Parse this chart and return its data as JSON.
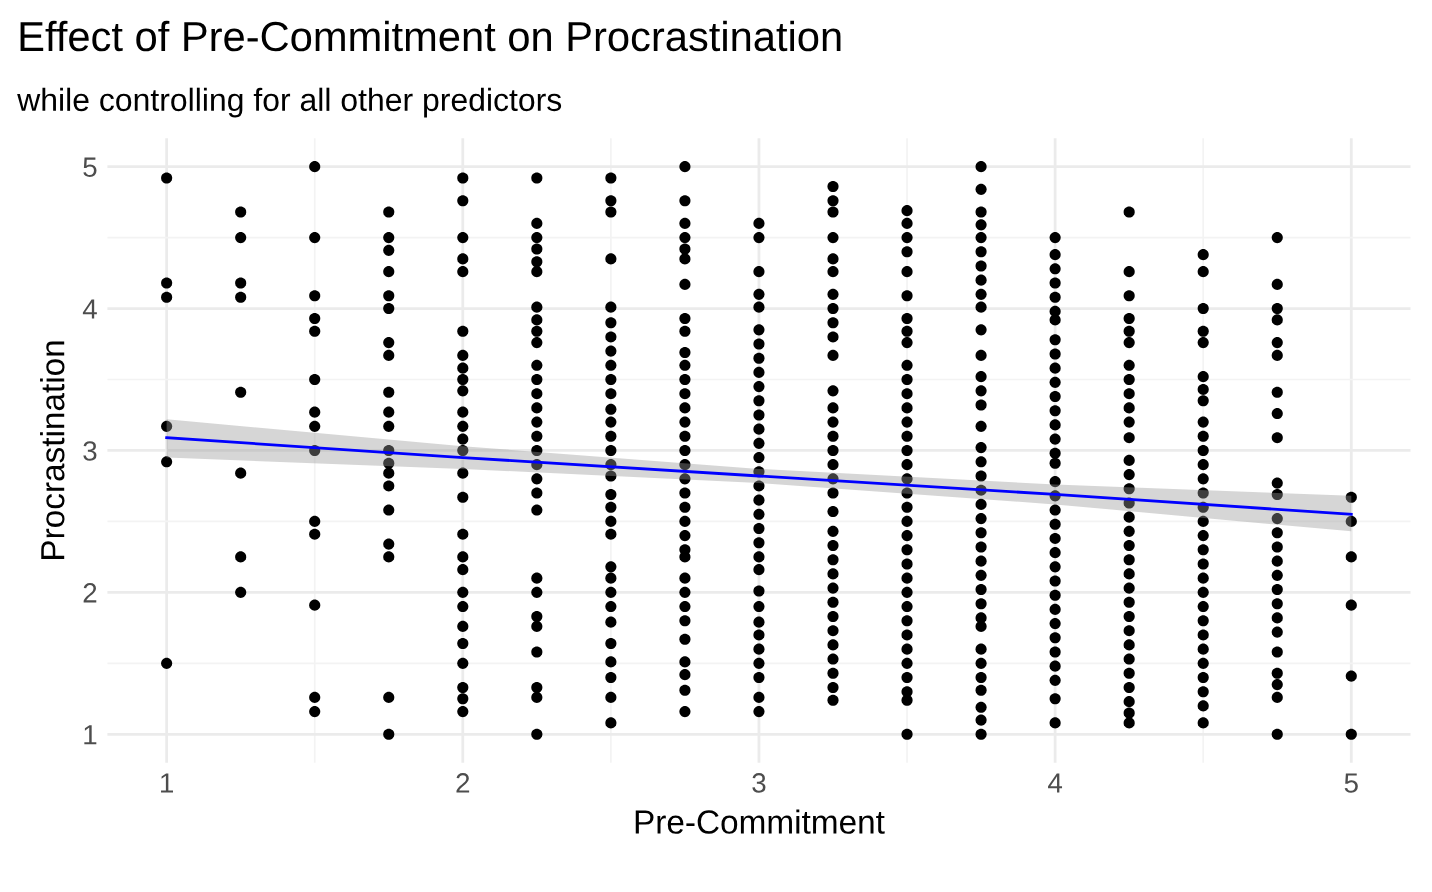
{
  "chart_data": {
    "type": "scatter",
    "title": "Effect of Pre-Commitment on Procrastination",
    "subtitle": "while controlling for all other predictors",
    "xlabel": "Pre-Commitment",
    "ylabel": "Procrastination",
    "xlim": [
      0.8,
      5.2
    ],
    "ylim": [
      0.8,
      5.2
    ],
    "xticks": [
      1,
      2,
      3,
      4,
      5
    ],
    "yticks": [
      1,
      2,
      3,
      4,
      5
    ],
    "grid": true,
    "marker": "circle",
    "series": [
      {
        "color": "#000000",
        "x": [
          1,
          1,
          1,
          1,
          1,
          1
        ],
        "values": [
          4.92,
          4.18,
          4.08,
          3.17,
          2.92,
          1.5
        ]
      },
      {
        "color": "#000000",
        "x": [
          1.25,
          1.25,
          1.25,
          1.25,
          1.25,
          1.25,
          1.25,
          1.25
        ],
        "values": [
          4.68,
          4.5,
          4.18,
          4.08,
          3.41,
          2.84,
          2.25,
          2.0
        ]
      },
      {
        "color": "#000000",
        "x": [
          1.5,
          1.5,
          1.5,
          1.5,
          1.5,
          1.5,
          1.5,
          1.5,
          1.5,
          1.5,
          1.5,
          1.5,
          1.5,
          1.5
        ],
        "values": [
          5.0,
          4.5,
          4.09,
          3.93,
          3.84,
          3.5,
          3.27,
          3.17,
          3.0,
          2.5,
          2.41,
          1.91,
          1.26,
          1.16
        ]
      },
      {
        "color": "#000000",
        "x": [
          1.75,
          1.75,
          1.75,
          1.75,
          1.75,
          1.75,
          1.75,
          1.75,
          1.75,
          1.75,
          1.75,
          1.75,
          1.75,
          1.75,
          1.75,
          1.75,
          1.75,
          1.75,
          1.75,
          1.75
        ],
        "values": [
          4.68,
          4.5,
          4.41,
          4.26,
          4.09,
          4.0,
          3.76,
          3.67,
          3.41,
          3.27,
          3.17,
          3.0,
          2.91,
          2.84,
          2.75,
          2.58,
          2.34,
          2.25,
          1.26,
          1.0
        ]
      },
      {
        "color": "#000000",
        "x": [
          2,
          2,
          2,
          2,
          2,
          2,
          2,
          2,
          2,
          2,
          2,
          2,
          2,
          2,
          2,
          2,
          2,
          2,
          2,
          2,
          2,
          2,
          2,
          2,
          2,
          2,
          2
        ],
        "values": [
          4.92,
          4.76,
          4.5,
          4.35,
          4.26,
          3.84,
          3.67,
          3.58,
          3.5,
          3.42,
          3.27,
          3.17,
          3.08,
          3.0,
          2.84,
          2.67,
          2.41,
          2.25,
          2.16,
          2.0,
          1.9,
          1.76,
          1.64,
          1.5,
          1.33,
          1.25,
          1.16
        ]
      },
      {
        "color": "#000000",
        "x": [
          2.25,
          2.25,
          2.25,
          2.25,
          2.25,
          2.25,
          2.25,
          2.25,
          2.25,
          2.25,
          2.25,
          2.25,
          2.25,
          2.25,
          2.25,
          2.25,
          2.25,
          2.25,
          2.25,
          2.25,
          2.25,
          2.25,
          2.25,
          2.25,
          2.25,
          2.25,
          2.25,
          2.25,
          2.25
        ],
        "values": [
          4.92,
          4.6,
          4.5,
          4.42,
          4.33,
          4.26,
          4.01,
          3.92,
          3.84,
          3.76,
          3.6,
          3.5,
          3.4,
          3.3,
          3.2,
          3.1,
          3.0,
          2.9,
          2.8,
          2.7,
          2.58,
          2.1,
          2.0,
          1.83,
          1.76,
          1.58,
          1.33,
          1.26,
          1.0
        ]
      },
      {
        "color": "#000000",
        "x": [
          2.5,
          2.5,
          2.5,
          2.5,
          2.5,
          2.5,
          2.5,
          2.5,
          2.5,
          2.5,
          2.5,
          2.5,
          2.5,
          2.5,
          2.5,
          2.5,
          2.5,
          2.5,
          2.5,
          2.5,
          2.5,
          2.5,
          2.5,
          2.5,
          2.5,
          2.5,
          2.5,
          2.5,
          2.5,
          2.5,
          2.5
        ],
        "values": [
          4.92,
          4.76,
          4.68,
          4.35,
          4.01,
          3.9,
          3.8,
          3.7,
          3.6,
          3.5,
          3.4,
          3.29,
          3.2,
          3.1,
          3.0,
          2.9,
          2.82,
          2.69,
          2.6,
          2.5,
          2.41,
          2.18,
          2.1,
          2.0,
          1.9,
          1.79,
          1.64,
          1.51,
          1.4,
          1.26,
          1.08
        ]
      },
      {
        "color": "#000000",
        "x": [
          2.75,
          2.75,
          2.75,
          2.75,
          2.75,
          2.75,
          2.75,
          2.75,
          2.75,
          2.75,
          2.75,
          2.75,
          2.75,
          2.75,
          2.75,
          2.75,
          2.75,
          2.75,
          2.75,
          2.75,
          2.75,
          2.75,
          2.75,
          2.75,
          2.75,
          2.75,
          2.75,
          2.75,
          2.75,
          2.75,
          2.75,
          2.75,
          2.75,
          2.75
        ],
        "values": [
          5.0,
          4.76,
          4.6,
          4.5,
          4.42,
          4.35,
          4.17,
          3.93,
          3.84,
          3.69,
          3.6,
          3.5,
          3.4,
          3.3,
          3.2,
          3.1,
          3.0,
          2.9,
          2.8,
          2.7,
          2.6,
          2.5,
          2.4,
          2.3,
          2.25,
          2.1,
          2.0,
          1.9,
          1.8,
          1.67,
          1.51,
          1.42,
          1.31,
          1.16
        ]
      },
      {
        "color": "#000000",
        "x": [
          3,
          3,
          3,
          3,
          3,
          3,
          3,
          3,
          3,
          3,
          3,
          3,
          3,
          3,
          3,
          3,
          3,
          3,
          3,
          3,
          3,
          3,
          3,
          3,
          3,
          3,
          3,
          3,
          3,
          3,
          3,
          3
        ],
        "values": [
          4.6,
          4.5,
          4.26,
          4.1,
          4.01,
          3.85,
          3.75,
          3.65,
          3.55,
          3.45,
          3.35,
          3.25,
          3.15,
          3.05,
          2.95,
          2.85,
          2.75,
          2.65,
          2.55,
          2.45,
          2.35,
          2.25,
          2.16,
          2.01,
          1.9,
          1.79,
          1.7,
          1.6,
          1.5,
          1.4,
          1.26,
          1.16
        ]
      },
      {
        "color": "#000000",
        "x": [
          3.25,
          3.25,
          3.25,
          3.25,
          3.25,
          3.25,
          3.25,
          3.25,
          3.25,
          3.25,
          3.25,
          3.25,
          3.25,
          3.25,
          3.25,
          3.25,
          3.25,
          3.25,
          3.25,
          3.25,
          3.25,
          3.25,
          3.25,
          3.25,
          3.25,
          3.25,
          3.25,
          3.25,
          3.25,
          3.25,
          3.25,
          3.25,
          3.25
        ],
        "values": [
          4.86,
          4.76,
          4.68,
          4.5,
          4.35,
          4.26,
          4.1,
          4.0,
          3.9,
          3.8,
          3.67,
          3.42,
          3.3,
          3.2,
          3.1,
          3.0,
          2.9,
          2.8,
          2.7,
          2.57,
          2.43,
          2.33,
          2.23,
          2.13,
          2.03,
          1.93,
          1.83,
          1.73,
          1.63,
          1.53,
          1.43,
          1.33,
          1.24
        ]
      },
      {
        "color": "#000000",
        "x": [
          3.5,
          3.5,
          3.5,
          3.5,
          3.5,
          3.5,
          3.5,
          3.5,
          3.5,
          3.5,
          3.5,
          3.5,
          3.5,
          3.5,
          3.5,
          3.5,
          3.5,
          3.5,
          3.5,
          3.5,
          3.5,
          3.5,
          3.5,
          3.5,
          3.5,
          3.5,
          3.5,
          3.5,
          3.5,
          3.5,
          3.5,
          3.5,
          3.5,
          3.5,
          3.5
        ],
        "values": [
          4.69,
          4.6,
          4.5,
          4.4,
          4.26,
          4.09,
          3.93,
          3.84,
          3.76,
          3.6,
          3.5,
          3.4,
          3.3,
          3.2,
          3.1,
          3.0,
          2.9,
          2.8,
          2.7,
          2.6,
          2.5,
          2.4,
          2.3,
          2.2,
          2.1,
          2.0,
          1.9,
          1.8,
          1.7,
          1.6,
          1.5,
          1.4,
          1.3,
          1.24,
          1.0
        ]
      },
      {
        "color": "#000000",
        "x": [
          3.75,
          3.75,
          3.75,
          3.75,
          3.75,
          3.75,
          3.75,
          3.75,
          3.75,
          3.75,
          3.75,
          3.75,
          3.75,
          3.75,
          3.75,
          3.75,
          3.75,
          3.75,
          3.75,
          3.75,
          3.75,
          3.75,
          3.75,
          3.75,
          3.75,
          3.75,
          3.75,
          3.75,
          3.75,
          3.75,
          3.75,
          3.75,
          3.75,
          3.75,
          3.75,
          3.75,
          3.75
        ],
        "values": [
          5.0,
          4.84,
          4.68,
          4.59,
          4.5,
          4.4,
          4.3,
          4.2,
          4.1,
          4.01,
          3.85,
          3.67,
          3.52,
          3.42,
          3.32,
          3.17,
          3.02,
          2.92,
          2.82,
          2.72,
          2.62,
          2.52,
          2.42,
          2.32,
          2.22,
          2.12,
          2.02,
          1.92,
          1.82,
          1.76,
          1.6,
          1.5,
          1.4,
          1.31,
          1.19,
          1.1,
          1.0
        ]
      },
      {
        "color": "#000000",
        "x": [
          4,
          4,
          4,
          4,
          4,
          4,
          4,
          4,
          4,
          4,
          4,
          4,
          4,
          4,
          4,
          4,
          4,
          4,
          4,
          4,
          4,
          4,
          4,
          4,
          4,
          4,
          4,
          4,
          4,
          4,
          4,
          4,
          4,
          4
        ],
        "values": [
          4.5,
          4.38,
          4.28,
          4.18,
          4.08,
          3.98,
          3.92,
          3.78,
          3.68,
          3.58,
          3.48,
          3.38,
          3.28,
          3.18,
          3.08,
          2.98,
          2.91,
          2.78,
          2.68,
          2.58,
          2.48,
          2.38,
          2.28,
          2.18,
          2.08,
          1.98,
          1.88,
          1.78,
          1.68,
          1.58,
          1.48,
          1.38,
          1.25,
          1.08
        ]
      },
      {
        "color": "#000000",
        "x": [
          4.25,
          4.25,
          4.25,
          4.25,
          4.25,
          4.25,
          4.25,
          4.25,
          4.25,
          4.25,
          4.25,
          4.25,
          4.25,
          4.25,
          4.25,
          4.25,
          4.25,
          4.25,
          4.25,
          4.25,
          4.25,
          4.25,
          4.25,
          4.25,
          4.25,
          4.25,
          4.25,
          4.25,
          4.25,
          4.25,
          4.25,
          4.25
        ],
        "values": [
          4.68,
          4.26,
          4.09,
          3.93,
          3.84,
          3.76,
          3.6,
          3.5,
          3.4,
          3.3,
          3.2,
          3.09,
          2.93,
          2.83,
          2.73,
          2.63,
          2.53,
          2.43,
          2.33,
          2.23,
          2.13,
          2.03,
          1.93,
          1.83,
          1.73,
          1.63,
          1.53,
          1.43,
          1.33,
          1.23,
          1.15,
          1.08
        ]
      },
      {
        "color": "#000000",
        "x": [
          4.5,
          4.5,
          4.5,
          4.5,
          4.5,
          4.5,
          4.5,
          4.5,
          4.5,
          4.5,
          4.5,
          4.5,
          4.5,
          4.5,
          4.5,
          4.5,
          4.5,
          4.5,
          4.5,
          4.5,
          4.5,
          4.5,
          4.5,
          4.5,
          4.5,
          4.5,
          4.5,
          4.5,
          4.5,
          4.5
        ],
        "values": [
          4.38,
          4.26,
          4.0,
          3.84,
          3.76,
          3.52,
          3.43,
          3.35,
          3.2,
          3.1,
          3.0,
          2.9,
          2.8,
          2.7,
          2.6,
          2.5,
          2.4,
          2.3,
          2.2,
          2.1,
          2.0,
          1.9,
          1.8,
          1.7,
          1.6,
          1.5,
          1.4,
          1.3,
          1.2,
          1.08
        ]
      },
      {
        "color": "#000000",
        "x": [
          4.75,
          4.75,
          4.75,
          4.75,
          4.75,
          4.75,
          4.75,
          4.75,
          4.75,
          4.75,
          4.75,
          4.75,
          4.75,
          4.75,
          4.75,
          4.75,
          4.75,
          4.75,
          4.75,
          4.75,
          4.75,
          4.75,
          4.75,
          4.75,
          4.75
        ],
        "values": [
          4.5,
          4.17,
          4.0,
          3.92,
          3.76,
          3.67,
          3.41,
          3.26,
          3.09,
          2.77,
          2.69,
          2.52,
          2.42,
          2.32,
          2.22,
          2.12,
          2.02,
          1.92,
          1.82,
          1.72,
          1.58,
          1.43,
          1.35,
          1.26,
          1.0
        ]
      },
      {
        "color": "#000000",
        "x": [
          5,
          5,
          5,
          5,
          5,
          5
        ],
        "values": [
          2.67,
          2.5,
          2.25,
          1.91,
          1.41,
          1.0
        ]
      },
      {
        "type": "line",
        "marker": "none",
        "color": "#0000ff",
        "x": [
          1,
          2,
          3,
          4,
          5
        ],
        "values": [
          3.09,
          2.95,
          2.82,
          2.69,
          2.55
        ],
        "lower": [
          2.95,
          2.87,
          2.77,
          2.62,
          2.43
        ],
        "upper": [
          3.22,
          3.03,
          2.87,
          2.76,
          2.68
        ]
      }
    ]
  }
}
